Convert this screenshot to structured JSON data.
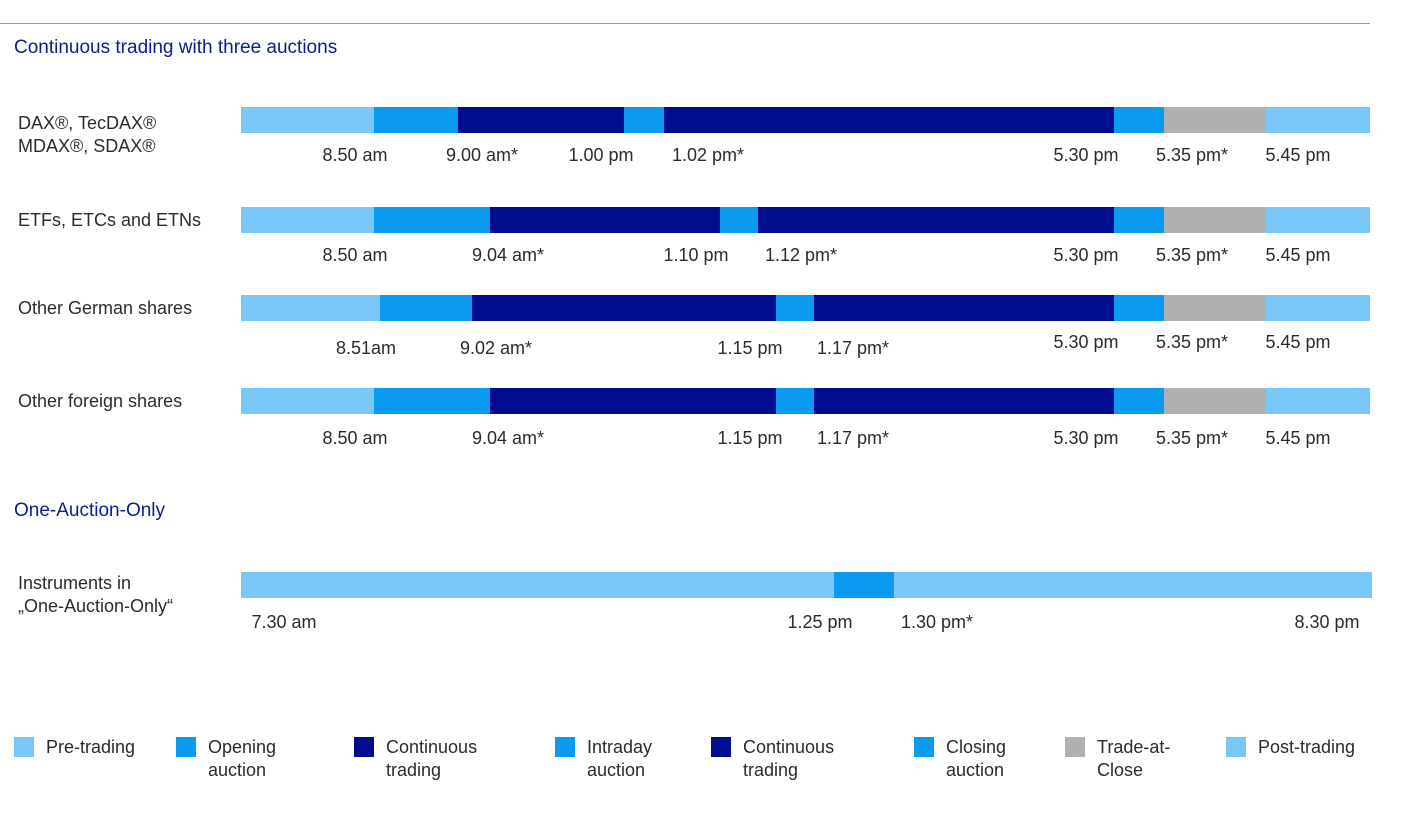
{
  "colors": {
    "pre_trading": "#79c8f7",
    "opening_auction": "#0a9af0",
    "continuous_trading": "#000d8e",
    "intraday_auction": "#0a9af0",
    "closing_auction": "#0a9af0",
    "trade_at_close": "#b0b0b0",
    "post_trading": "#79c8f7"
  },
  "section1": {
    "title": "Continuous trading with three auctions"
  },
  "section2": {
    "title": "One-Auction-Only"
  },
  "rows": [
    {
      "label_lines": [
        "DAX®, TecDAX®",
        "MDAX®, SDAX®"
      ],
      "times": [
        "8.50 am",
        "9.00 am*",
        "1.00 pm",
        "1.02 pm*",
        "5.30 pm",
        "5.35 pm*",
        "5.45 pm"
      ]
    },
    {
      "label_lines": [
        "ETFs, ETCs and ETNs"
      ],
      "times": [
        "8.50 am",
        "9.04 am*",
        "1.10 pm",
        "1.12 pm*",
        "5.30 pm",
        "5.35 pm*",
        "5.45 pm"
      ]
    },
    {
      "label_lines": [
        "Other German shares"
      ],
      "times": [
        "8.51am",
        "9.02 am*",
        "1.15 pm",
        "1.17 pm*",
        "5.30 pm",
        "5.35 pm*",
        "5.45 pm"
      ]
    },
    {
      "label_lines": [
        "Other foreign shares"
      ],
      "times": [
        "8.50 am",
        "9.04 am*",
        "1.15 pm",
        "1.17 pm*",
        "5.30 pm",
        "5.35 pm*",
        "5.45 pm"
      ]
    }
  ],
  "one_auction_row": {
    "label_lines": [
      "Instruments in",
      "„One-Auction-Only“"
    ],
    "times": [
      "7.30 am",
      "1.25 pm",
      "1.30 pm*",
      "8.30 pm"
    ]
  },
  "legend": [
    {
      "lines": [
        "Pre-trading"
      ],
      "color_key": "pre_trading"
    },
    {
      "lines": [
        "Opening",
        "auction"
      ],
      "color_key": "opening_auction"
    },
    {
      "lines": [
        "Continuous",
        "trading"
      ],
      "color_key": "continuous_trading"
    },
    {
      "lines": [
        "Intraday",
        "auction"
      ],
      "color_key": "intraday_auction"
    },
    {
      "lines": [
        "Continuous",
        "trading"
      ],
      "color_key": "continuous_trading"
    },
    {
      "lines": [
        "Closing",
        "auction"
      ],
      "color_key": "closing_auction"
    },
    {
      "lines": [
        "Trade-at-",
        "Close"
      ],
      "color_key": "trade_at_close"
    },
    {
      "lines": [
        "Post-trading"
      ],
      "color_key": "post_trading"
    }
  ]
}
